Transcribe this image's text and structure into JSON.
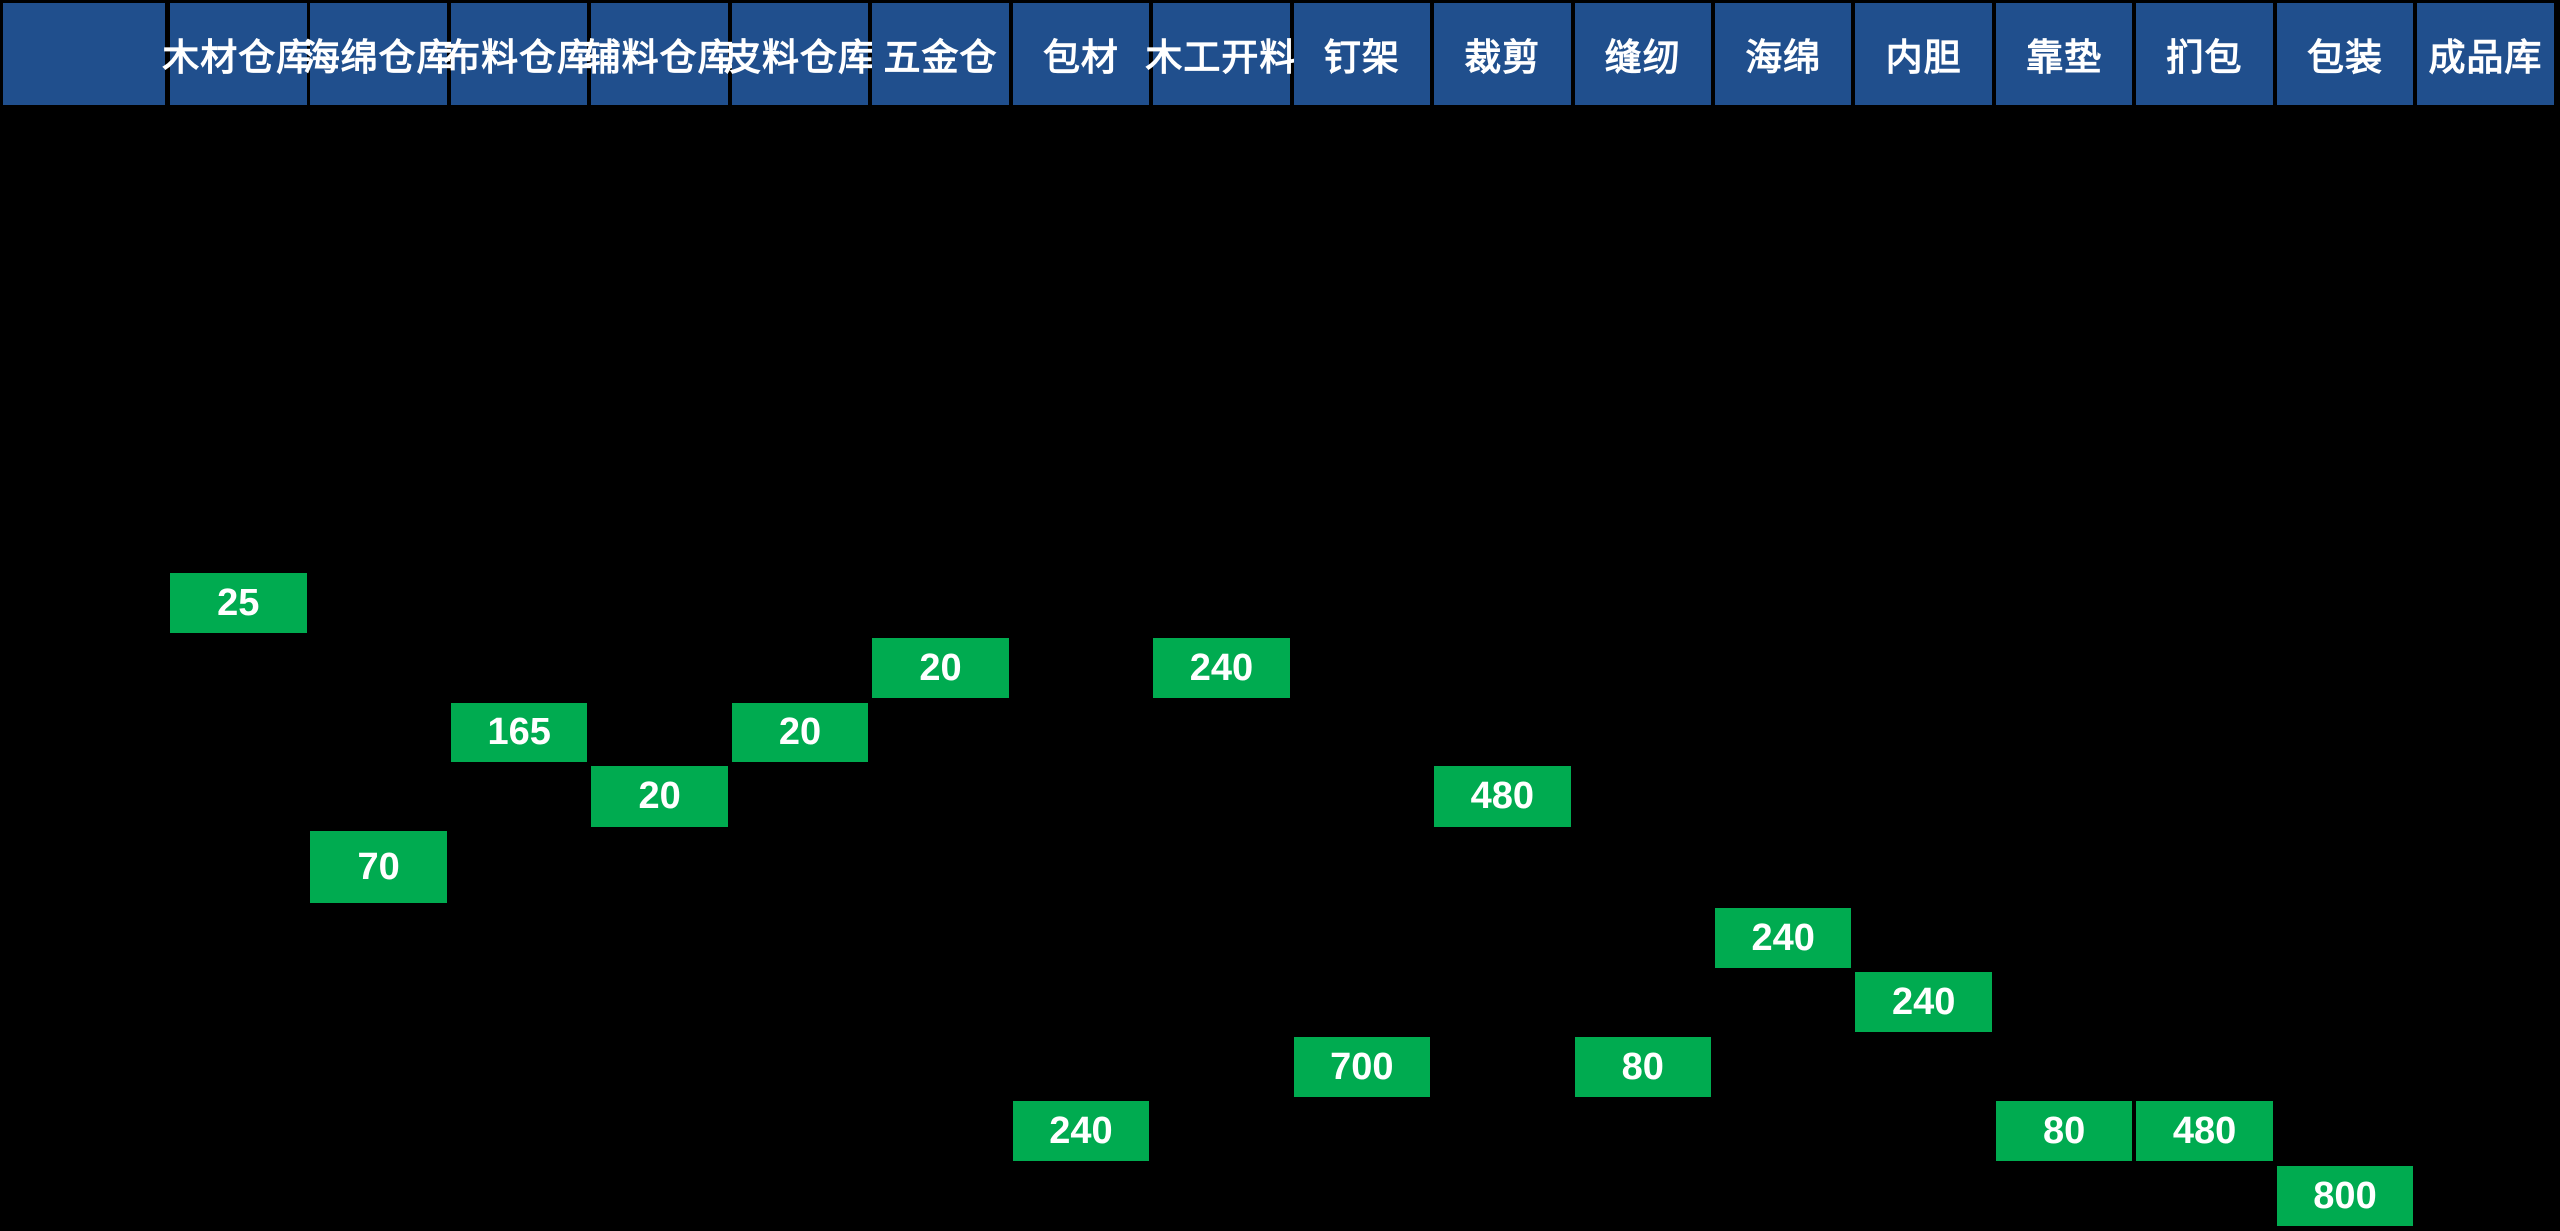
{
  "colors": {
    "board_background": "#000000",
    "header_background": "#204F8D",
    "quantity_cell_background": "#00AB50",
    "text": "#FFFFFF"
  },
  "header": {
    "columns": [
      {
        "key": "blank",
        "label": ""
      },
      {
        "key": "wood-warehouse",
        "label": "木材仓库"
      },
      {
        "key": "sponge-warehouse",
        "label": "海绵仓库"
      },
      {
        "key": "fabric-warehouse",
        "label": "布料仓库"
      },
      {
        "key": "accessory-warehouse",
        "label": "辅料仓库"
      },
      {
        "key": "leather-warehouse",
        "label": "皮料仓库"
      },
      {
        "key": "hardware-warehouse",
        "label": "五金仓"
      },
      {
        "key": "packing-material",
        "label": "包材"
      },
      {
        "key": "woodwork-cutting",
        "label": "木工开料"
      },
      {
        "key": "nailing-frame",
        "label": "钉架"
      },
      {
        "key": "cutting",
        "label": "裁剪"
      },
      {
        "key": "sewing",
        "label": "缝纫"
      },
      {
        "key": "sponge",
        "label": "海绵"
      },
      {
        "key": "inner-liner",
        "label": "内胆"
      },
      {
        "key": "cushion",
        "label": "靠垫"
      },
      {
        "key": "upholstery",
        "label": "扪包"
      },
      {
        "key": "packing",
        "label": "包装"
      },
      {
        "key": "finished-goods-warehouse",
        "label": "成品库"
      }
    ]
  },
  "cells": [
    {
      "key": "wood-warehouse",
      "station": "木材仓库",
      "col": 1,
      "row": 1,
      "value": "25"
    },
    {
      "key": "hardware-warehouse",
      "station": "五金仓",
      "col": 6,
      "row": 2,
      "value": "20"
    },
    {
      "key": "woodwork-cutting",
      "station": "木工开料",
      "col": 8,
      "row": 2,
      "value": "240"
    },
    {
      "key": "fabric-warehouse",
      "station": "布料仓库",
      "col": 3,
      "row": 3,
      "value": "165"
    },
    {
      "key": "leather-warehouse",
      "station": "皮料仓库",
      "col": 5,
      "row": 3,
      "value": "20"
    },
    {
      "key": "accessory-warehouse",
      "station": "辅料仓库",
      "col": 4,
      "row": 4,
      "value": "20"
    },
    {
      "key": "cutting",
      "station": "裁剪",
      "col": 10,
      "row": 4,
      "value": "480"
    },
    {
      "key": "sponge-warehouse",
      "station": "海绵仓库",
      "col": 2,
      "row": 5,
      "value": "70"
    },
    {
      "key": "sponge",
      "station": "海绵",
      "col": 12,
      "row": 6,
      "value": "240"
    },
    {
      "key": "inner-liner",
      "station": "内胆",
      "col": 13,
      "row": 7,
      "value": "240"
    },
    {
      "key": "nailing-frame",
      "station": "钉架",
      "col": 9,
      "row": 8,
      "value": "700"
    },
    {
      "key": "sewing",
      "station": "缝纫",
      "col": 11,
      "row": 8,
      "value": "80"
    },
    {
      "key": "packing-material",
      "station": "包材",
      "col": 7,
      "row": 9,
      "value": "240"
    },
    {
      "key": "cushion",
      "station": "靠垫",
      "col": 14,
      "row": 9,
      "value": "80"
    },
    {
      "key": "upholstery",
      "station": "扪包",
      "col": 15,
      "row": 9,
      "value": "480"
    },
    {
      "key": "packing",
      "station": "包装",
      "col": 16,
      "row": 10,
      "value": "800"
    }
  ]
}
